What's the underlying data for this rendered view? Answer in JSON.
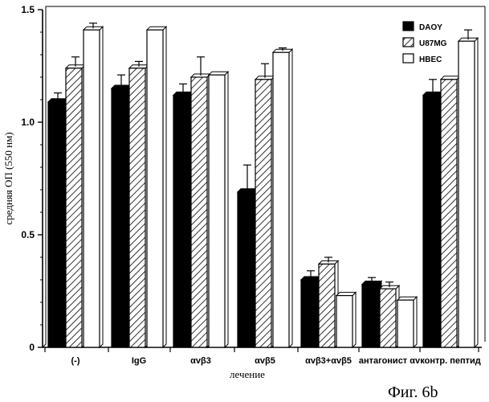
{
  "chart_data": {
    "type": "bar",
    "title": "",
    "xlabel": "лечение",
    "ylabel": "средняя ОП (550 нм)",
    "ylim": [
      0,
      1.5
    ],
    "yticks": [
      "0",
      "0.5",
      "1.0",
      "1.5"
    ],
    "ytick_values": [
      0,
      0.5,
      1.0,
      1.5
    ],
    "categories": [
      "(-)",
      "IgG",
      "αvβ3",
      "αvβ5",
      "αvβ3+αvβ5",
      "антагонист αv",
      "контр. пептид"
    ],
    "series": [
      {
        "name": "DAOY",
        "values": [
          1.09,
          1.15,
          1.12,
          0.69,
          0.3,
          0.28,
          1.12
        ],
        "errors": [
          0.04,
          0.06,
          0.05,
          0.12,
          0.04,
          0.03,
          0.07
        ]
      },
      {
        "name": "U87MG",
        "values": [
          1.24,
          1.24,
          1.2,
          1.19,
          0.37,
          0.26,
          1.19
        ],
        "errors": [
          0.05,
          0.03,
          0.09,
          0.07,
          0.03,
          0.03,
          0.0
        ]
      },
      {
        "name": "HBEC",
        "values": [
          1.41,
          1.41,
          1.21,
          1.31,
          0.23,
          0.21,
          1.36
        ],
        "errors": [
          0.03,
          0.0,
          0.0,
          0.02,
          0.0,
          0.0,
          0.05
        ]
      }
    ],
    "legend_position": "top-right",
    "grid": false
  },
  "caption": "Фиг. 6b"
}
